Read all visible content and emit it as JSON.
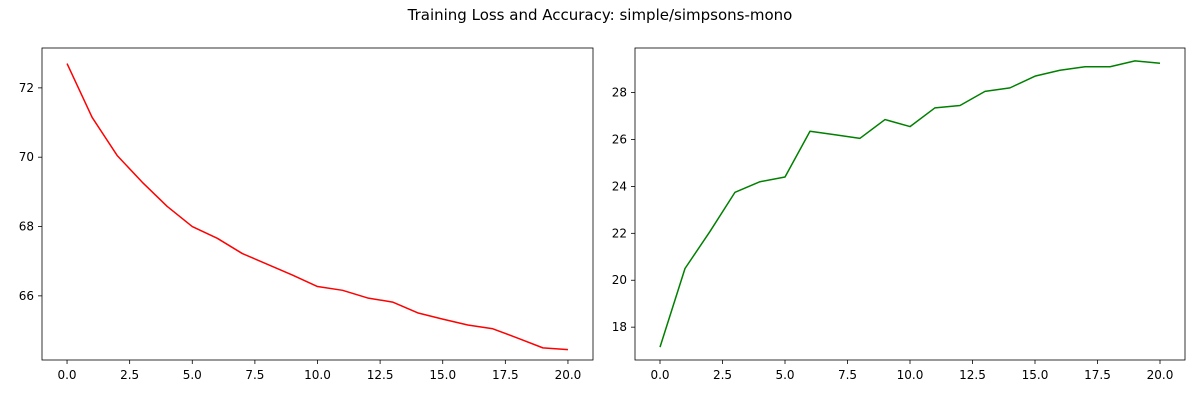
{
  "figure": {
    "title": "Training Loss and Accuracy: simple/simpsons-mono"
  },
  "chart_data": [
    {
      "type": "line",
      "title": "",
      "xlabel": "",
      "ylabel": "",
      "xlim": [
        -1,
        21
      ],
      "ylim": [
        64.15,
        73.15
      ],
      "xticks": [
        "0.0",
        "2.5",
        "5.0",
        "7.5",
        "10.0",
        "12.5",
        "15.0",
        "17.5",
        "20.0"
      ],
      "yticks": [
        "66",
        "68",
        "70",
        "72"
      ],
      "grid": false,
      "series": [
        {
          "color": "#ff0000",
          "x": [
            0,
            1,
            2,
            3,
            4,
            5,
            6,
            7,
            8,
            9,
            10,
            11,
            12,
            13,
            14,
            15,
            16,
            17,
            18,
            19,
            20
          ],
          "y": [
            72.7,
            71.15,
            70.05,
            69.28,
            68.58,
            68.0,
            67.66,
            67.22,
            66.91,
            66.6,
            66.27,
            66.16,
            65.94,
            65.82,
            65.51,
            65.33,
            65.16,
            65.05,
            64.78,
            64.5,
            64.45
          ]
        }
      ]
    },
    {
      "type": "line",
      "title": "",
      "xlabel": "",
      "ylabel": "",
      "xlim": [
        -1,
        21
      ],
      "ylim": [
        16.6,
        29.9
      ],
      "xticks": [
        "0.0",
        "2.5",
        "5.0",
        "7.5",
        "10.0",
        "12.5",
        "15.0",
        "17.5",
        "20.0"
      ],
      "yticks": [
        "18",
        "20",
        "22",
        "24",
        "26",
        "28"
      ],
      "grid": false,
      "series": [
        {
          "color": "#008000",
          "x": [
            0,
            1,
            2,
            3,
            4,
            5,
            6,
            7,
            8,
            9,
            10,
            11,
            12,
            13,
            14,
            15,
            16,
            17,
            18,
            19,
            20
          ],
          "y": [
            17.15,
            20.5,
            22.08,
            23.75,
            24.2,
            24.4,
            26.35,
            26.2,
            26.05,
            26.85,
            26.55,
            27.35,
            27.45,
            28.05,
            28.2,
            28.7,
            28.95,
            29.1,
            29.1,
            29.35,
            29.25
          ]
        }
      ]
    }
  ]
}
